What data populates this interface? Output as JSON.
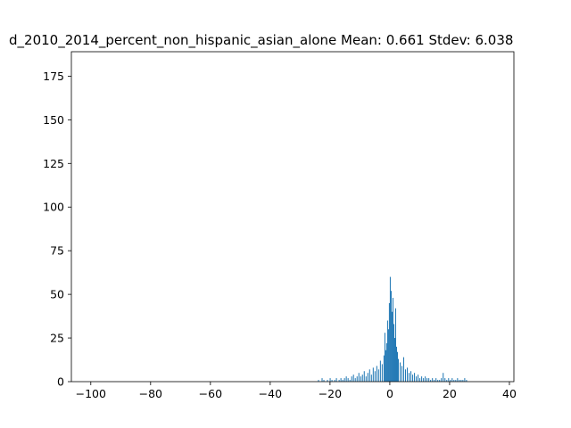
{
  "chart_data": {
    "type": "bar",
    "title": "d_2010_2014_percent_non_hispanic_asian_alone  Mean: 0.661  Stdev: 6.038",
    "xlabel": "",
    "ylabel": "",
    "xlim": [
      -106.5,
      41.5
    ],
    "ylim": [
      0,
      189
    ],
    "x_ticks": [
      -100,
      -80,
      -60,
      -40,
      -20,
      0,
      20,
      40
    ],
    "y_ticks": [
      0,
      25,
      50,
      75,
      100,
      125,
      150,
      175
    ],
    "bar_color": "#1f77b4",
    "bin_width": 0.3,
    "grid": false,
    "bins": [
      {
        "x": -24.0,
        "y": 1
      },
      {
        "x": -22.8,
        "y": 2
      },
      {
        "x": -22.2,
        "y": 1
      },
      {
        "x": -21.0,
        "y": 1
      },
      {
        "x": -20.1,
        "y": 2
      },
      {
        "x": -19.5,
        "y": 1
      },
      {
        "x": -18.6,
        "y": 1
      },
      {
        "x": -18.0,
        "y": 2
      },
      {
        "x": -17.1,
        "y": 1
      },
      {
        "x": -16.5,
        "y": 2
      },
      {
        "x": -15.9,
        "y": 1
      },
      {
        "x": -15.3,
        "y": 2
      },
      {
        "x": -14.7,
        "y": 3
      },
      {
        "x": -14.1,
        "y": 2
      },
      {
        "x": -13.5,
        "y": 1
      },
      {
        "x": -12.9,
        "y": 3
      },
      {
        "x": -12.3,
        "y": 4
      },
      {
        "x": -11.7,
        "y": 2
      },
      {
        "x": -11.1,
        "y": 3
      },
      {
        "x": -10.5,
        "y": 5
      },
      {
        "x": -9.9,
        "y": 3
      },
      {
        "x": -9.3,
        "y": 4
      },
      {
        "x": -8.7,
        "y": 6
      },
      {
        "x": -8.1,
        "y": 3
      },
      {
        "x": -7.5,
        "y": 5
      },
      {
        "x": -6.9,
        "y": 7
      },
      {
        "x": -6.3,
        "y": 4
      },
      {
        "x": -5.7,
        "y": 8
      },
      {
        "x": -5.1,
        "y": 6
      },
      {
        "x": -4.5,
        "y": 9
      },
      {
        "x": -3.9,
        "y": 7
      },
      {
        "x": -3.3,
        "y": 12
      },
      {
        "x": -2.7,
        "y": 10
      },
      {
        "x": -2.1,
        "y": 15
      },
      {
        "x": -1.8,
        "y": 28
      },
      {
        "x": -1.5,
        "y": 18
      },
      {
        "x": -1.2,
        "y": 22
      },
      {
        "x": -0.9,
        "y": 35
      },
      {
        "x": -0.6,
        "y": 30
      },
      {
        "x": -0.3,
        "y": 45
      },
      {
        "x": 0.0,
        "y": 60
      },
      {
        "x": 0.3,
        "y": 52
      },
      {
        "x": 0.6,
        "y": 40
      },
      {
        "x": 0.9,
        "y": 48
      },
      {
        "x": 1.2,
        "y": 33
      },
      {
        "x": 1.5,
        "y": 25
      },
      {
        "x": 1.8,
        "y": 42
      },
      {
        "x": 2.1,
        "y": 20
      },
      {
        "x": 2.4,
        "y": 17
      },
      {
        "x": 2.7,
        "y": 13
      },
      {
        "x": 3.3,
        "y": 11
      },
      {
        "x": 3.9,
        "y": 9
      },
      {
        "x": 4.5,
        "y": 14
      },
      {
        "x": 5.1,
        "y": 7
      },
      {
        "x": 5.7,
        "y": 8
      },
      {
        "x": 6.3,
        "y": 5
      },
      {
        "x": 6.9,
        "y": 6
      },
      {
        "x": 7.5,
        "y": 4
      },
      {
        "x": 8.1,
        "y": 5
      },
      {
        "x": 8.7,
        "y": 3
      },
      {
        "x": 9.3,
        "y": 4
      },
      {
        "x": 9.9,
        "y": 2
      },
      {
        "x": 10.5,
        "y": 3
      },
      {
        "x": 11.1,
        "y": 2
      },
      {
        "x": 11.7,
        "y": 3
      },
      {
        "x": 12.3,
        "y": 2
      },
      {
        "x": 12.9,
        "y": 2
      },
      {
        "x": 13.5,
        "y": 1
      },
      {
        "x": 14.1,
        "y": 2
      },
      {
        "x": 14.7,
        "y": 1
      },
      {
        "x": 15.3,
        "y": 2
      },
      {
        "x": 15.9,
        "y": 1
      },
      {
        "x": 16.5,
        "y": 1
      },
      {
        "x": 17.1,
        "y": 2
      },
      {
        "x": 17.7,
        "y": 5
      },
      {
        "x": 18.3,
        "y": 2
      },
      {
        "x": 18.9,
        "y": 1
      },
      {
        "x": 19.5,
        "y": 2
      },
      {
        "x": 20.1,
        "y": 1
      },
      {
        "x": 20.7,
        "y": 2
      },
      {
        "x": 21.3,
        "y": 1
      },
      {
        "x": 21.9,
        "y": 1
      },
      {
        "x": 22.5,
        "y": 2
      },
      {
        "x": 23.1,
        "y": 1
      },
      {
        "x": 23.7,
        "y": 1
      },
      {
        "x": 24.3,
        "y": 1
      },
      {
        "x": 24.9,
        "y": 2
      },
      {
        "x": 25.5,
        "y": 1
      }
    ]
  }
}
